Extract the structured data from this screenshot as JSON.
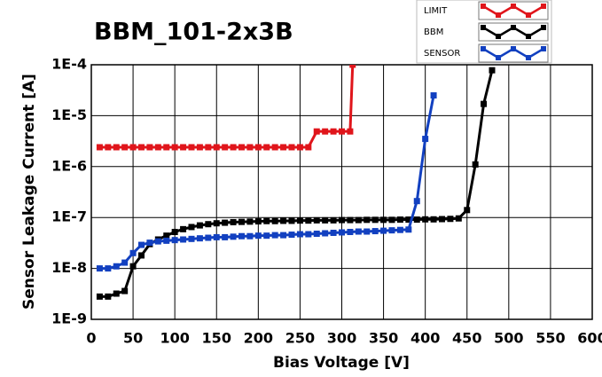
{
  "chart_data": {
    "type": "line",
    "title": "BBM_101-2x3B",
    "x_label": "Bias Voltage [V]",
    "y_label": "Sensor Leakage Current [A]",
    "xlim": [
      0,
      600
    ],
    "xticks": [
      0,
      50,
      100,
      150,
      200,
      250,
      300,
      350,
      400,
      450,
      500,
      550,
      600
    ],
    "ylim": [
      1e-09,
      0.0001
    ],
    "yticks": [
      {
        "value": 1e-09,
        "label": "1E-9"
      },
      {
        "value": 1e-08,
        "label": "1E-8"
      },
      {
        "value": 1e-07,
        "label": "1E-7"
      },
      {
        "value": 1e-06,
        "label": "1E-6"
      },
      {
        "value": 1e-05,
        "label": "1E-5"
      },
      {
        "value": 0.0001,
        "label": "1E-4"
      }
    ],
    "log_y": true,
    "grid": true,
    "legend": "top-right",
    "series": [
      {
        "name": "LIMIT",
        "color": "#e0151b",
        "x": [
          10,
          20,
          30,
          40,
          50,
          60,
          70,
          80,
          90,
          100,
          110,
          120,
          130,
          140,
          150,
          160,
          170,
          180,
          190,
          200,
          210,
          220,
          230,
          240,
          250,
          260,
          270,
          280,
          290,
          300,
          310,
          313
        ],
        "values": [
          2.4e-06,
          2.4e-06,
          2.4e-06,
          2.4e-06,
          2.4e-06,
          2.4e-06,
          2.4e-06,
          2.4e-06,
          2.4e-06,
          2.4e-06,
          2.4e-06,
          2.4e-06,
          2.4e-06,
          2.4e-06,
          2.4e-06,
          2.4e-06,
          2.4e-06,
          2.4e-06,
          2.4e-06,
          2.4e-06,
          2.4e-06,
          2.4e-06,
          2.4e-06,
          2.4e-06,
          2.4e-06,
          2.4e-06,
          4.9e-06,
          4.9e-06,
          4.9e-06,
          4.9e-06,
          4.9e-06,
          0.0001
        ]
      },
      {
        "name": "BBM",
        "color": "#000000",
        "x": [
          10,
          20,
          30,
          40,
          50,
          60,
          70,
          80,
          90,
          100,
          110,
          120,
          130,
          140,
          150,
          160,
          170,
          180,
          190,
          200,
          210,
          220,
          230,
          240,
          250,
          260,
          270,
          280,
          290,
          300,
          310,
          320,
          330,
          340,
          350,
          360,
          370,
          380,
          390,
          400,
          410,
          420,
          430,
          440,
          450,
          460,
          470,
          480
        ],
        "values": [
          2.8e-09,
          2.8e-09,
          3.2e-09,
          3.6e-09,
          1.1e-08,
          1.8e-08,
          3e-08,
          3.7e-08,
          4.4e-08,
          5.2e-08,
          5.9e-08,
          6.5e-08,
          7e-08,
          7.4e-08,
          7.7e-08,
          7.9e-08,
          8.1e-08,
          8.2e-08,
          8.3e-08,
          8.4e-08,
          8.5e-08,
          8.5e-08,
          8.6e-08,
          8.6e-08,
          8.7e-08,
          8.7e-08,
          8.8e-08,
          8.8e-08,
          8.8e-08,
          8.9e-08,
          8.9e-08,
          8.9e-08,
          9e-08,
          9e-08,
          9e-08,
          9e-08,
          9.1e-08,
          9.1e-08,
          9.1e-08,
          9.2e-08,
          9.2e-08,
          9.3e-08,
          9.4e-08,
          9.6e-08,
          1.4e-07,
          1.1e-06,
          1.7e-05,
          7.8e-05
        ]
      },
      {
        "name": "SENSOR",
        "color": "#1240c0",
        "x": [
          10,
          20,
          30,
          40,
          50,
          60,
          70,
          80,
          90,
          100,
          110,
          120,
          130,
          140,
          150,
          160,
          170,
          180,
          190,
          200,
          210,
          220,
          230,
          240,
          250,
          260,
          270,
          280,
          290,
          300,
          310,
          320,
          330,
          340,
          350,
          360,
          370,
          380,
          390,
          400,
          410
        ],
        "values": [
          1e-08,
          1e-08,
          1.1e-08,
          1.3e-08,
          2e-08,
          2.9e-08,
          3.2e-08,
          3.4e-08,
          3.5e-08,
          3.6e-08,
          3.7e-08,
          3.8e-08,
          3.9e-08,
          4e-08,
          4.1e-08,
          4.1e-08,
          4.2e-08,
          4.3e-08,
          4.3e-08,
          4.4e-08,
          4.4e-08,
          4.5e-08,
          4.5e-08,
          4.6e-08,
          4.7e-08,
          4.7e-08,
          4.8e-08,
          4.9e-08,
          5e-08,
          5.1e-08,
          5.2e-08,
          5.3e-08,
          5.3e-08,
          5.4e-08,
          5.5e-08,
          5.6e-08,
          5.7e-08,
          5.8e-08,
          2.1e-07,
          3.5e-06,
          2.5e-05
        ]
      }
    ]
  }
}
